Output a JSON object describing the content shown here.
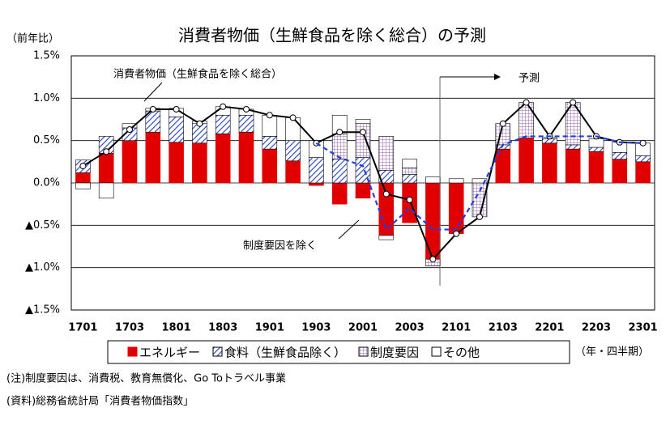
{
  "chart_data": {
    "type": "bar",
    "title": "消費者物価（生鮮食品を除く総合）の予測",
    "y_axis_label": "（前年比）",
    "x_axis_label": "（年・四半期）",
    "categories": [
      "1701",
      null,
      "1703",
      null,
      "1801",
      null,
      "1803",
      null,
      "1901",
      null,
      "1903",
      null,
      "2001",
      null,
      "2003",
      null,
      "2101",
      null,
      "2103",
      null,
      "2201",
      null,
      "2203",
      null,
      "2301"
    ],
    "ylim": [
      -1.5,
      1.5
    ],
    "yticks": [
      {
        "value": 1.5,
        "label": "1.5%"
      },
      {
        "value": 1.0,
        "label": "1.0%"
      },
      {
        "value": 0.5,
        "label": "0.5%"
      },
      {
        "value": 0.0,
        "label": "0.0%"
      },
      {
        "value": -0.5,
        "label": "▲0.5%"
      },
      {
        "value": -1.0,
        "label": "▲1.0%"
      },
      {
        "value": -1.5,
        "label": "▲1.5%"
      }
    ],
    "grid": true,
    "series": [
      {
        "name": "エネルギー",
        "color": "#e00000",
        "values": [
          0.12,
          0.35,
          0.5,
          0.6,
          0.48,
          0.47,
          0.58,
          0.6,
          0.4,
          0.26,
          -0.03,
          -0.25,
          -0.18,
          -0.62,
          -0.47,
          -0.9,
          -0.6,
          0,
          0.4,
          0.53,
          0.47,
          0.4,
          0.37,
          0.28,
          0.25
        ]
      },
      {
        "name": "食料（生鮮食品除く）",
        "color": "#1f3fbf",
        "values": [
          0.15,
          0.2,
          0.15,
          0.25,
          0.3,
          0.23,
          0.22,
          0.2,
          0.15,
          0.24,
          0.3,
          0.28,
          0.3,
          0.15,
          0.1,
          0,
          0,
          0,
          0.05,
          0,
          0.05,
          0.05,
          0.05,
          0.08,
          0.07
        ]
      },
      {
        "name": "制度要因",
        "color": "#9060b0",
        "values": [
          0,
          0,
          0,
          0,
          0,
          0,
          0,
          0,
          0,
          0,
          0,
          0.3,
          0.4,
          0.4,
          0.08,
          -0.08,
          0,
          -0.4,
          0.25,
          0.42,
          0,
          0.5,
          0,
          0,
          0
        ]
      },
      {
        "name": "その他",
        "color": "#ffffff",
        "values": [
          -0.07,
          -0.18,
          0.05,
          0.03,
          0.1,
          0.03,
          0.1,
          0.07,
          0.25,
          0.27,
          0.2,
          0.22,
          0.05,
          -0.05,
          0.1,
          0.07,
          0.05,
          0.05,
          0,
          0,
          0.02,
          0,
          0.1,
          0.12,
          0.15
        ]
      }
    ],
    "lines": [
      {
        "name": "消費者物価（生鮮食品を除く総合）",
        "color": "#000000",
        "values": [
          0.2,
          0.37,
          0.63,
          0.87,
          0.87,
          0.7,
          0.9,
          0.87,
          0.8,
          0.77,
          0.47,
          0.6,
          0.6,
          -0.13,
          -0.2,
          -0.9,
          -0.6,
          -0.4,
          0.7,
          0.95,
          0.55,
          0.95,
          0.55,
          0.48,
          0.47
        ]
      },
      {
        "name": "制度要因を除く",
        "color": "#1f3fdf",
        "values": [
          null,
          null,
          null,
          null,
          null,
          null,
          null,
          null,
          null,
          null,
          0.47,
          0.3,
          0.2,
          -0.55,
          -0.3,
          -0.55,
          -0.55,
          -0.1,
          0.45,
          0.55,
          0.55,
          0.55,
          0.55,
          0.48,
          0.47
        ]
      }
    ],
    "forecast_label": "予測",
    "notes": [
      "(注)制度要因は、消費税、教育無償化、Go Toトラベル事業",
      "(資料)総務省統計局「消費者物価指数」"
    ]
  }
}
